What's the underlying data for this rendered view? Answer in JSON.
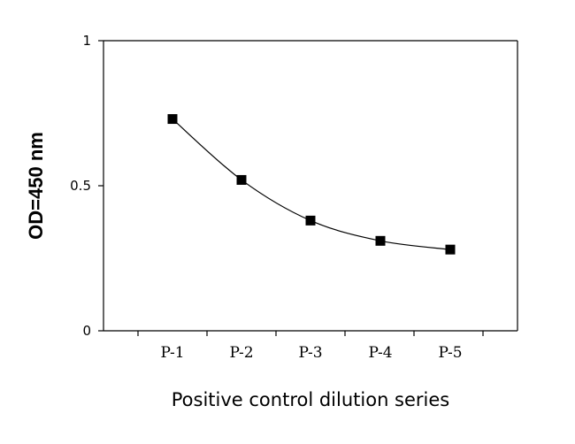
{
  "chart_data": {
    "type": "line",
    "title": "",
    "xlabel": "Positive control dilution series",
    "ylabel": "OD=450 nm",
    "categories": [
      "P-1",
      "P-2",
      "P-3",
      "P-4",
      "P-5"
    ],
    "series": [
      {
        "values": [
          0.73,
          0.52,
          0.38,
          0.31,
          0.28
        ]
      }
    ],
    "ylim": [
      0,
      1
    ],
    "yticks": [
      0,
      0.5,
      1
    ],
    "ytick_labels": [
      "0",
      "0.5",
      "1"
    ],
    "marker": "square",
    "smooth": true,
    "grid": false,
    "color": "#000000"
  }
}
